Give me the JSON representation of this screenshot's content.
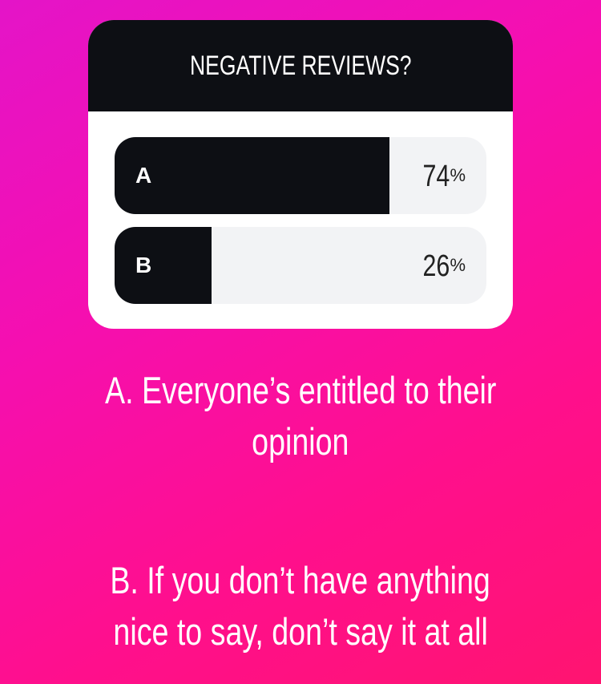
{
  "poll": {
    "question": "NEGATIVE REVIEWS?",
    "options": [
      {
        "label": "A",
        "percent": 74,
        "percent_text": "74",
        "symbol": "%"
      },
      {
        "label": "B",
        "percent": 26,
        "percent_text": "26",
        "symbol": "%"
      }
    ]
  },
  "caption": {
    "a_line1": "A. Everyone’s entitled to their",
    "a_line2": "opinion",
    "b_line1": "B. If you don’t have anything",
    "b_line2": "nice to say, don’t say it at all"
  },
  "colors": {
    "bar_fill": "#0d0f14",
    "bar_track": "#f2f3f5",
    "background_start": "#e414c8",
    "background_end": "#ff1470"
  }
}
